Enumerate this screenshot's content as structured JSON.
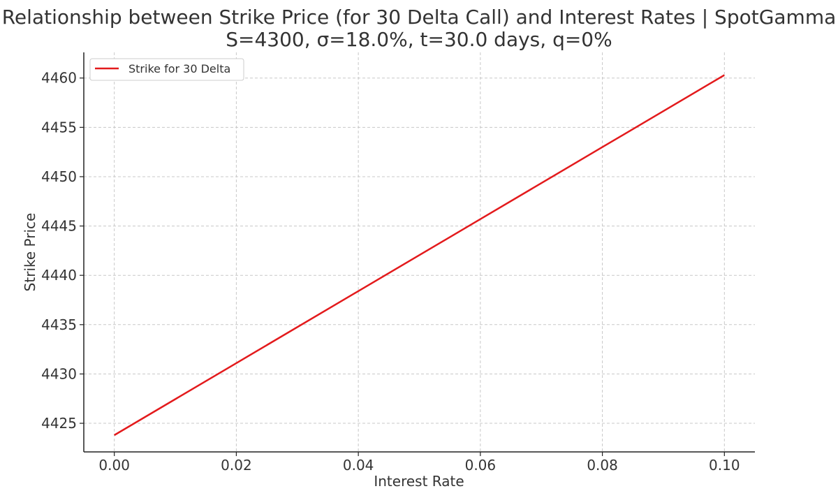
{
  "chart_data": {
    "type": "line",
    "title": "Relationship between Strike Price (for 30 Delta Call) and Interest Rates | SpotGamma",
    "subtitle": "S=4300, σ=18.0%, t=30.0 days, q=0%",
    "xlabel": "Interest Rate",
    "ylabel": "Strike Price",
    "xlim": [
      -0.005,
      0.105
    ],
    "ylim": [
      4422.1,
      4462.6
    ],
    "x_ticks": [
      0.0,
      0.02,
      0.04,
      0.06,
      0.08,
      0.1
    ],
    "x_tick_labels": [
      "0.00",
      "0.02",
      "0.04",
      "0.06",
      "0.08",
      "0.10"
    ],
    "y_ticks": [
      4425,
      4430,
      4435,
      4440,
      4445,
      4450,
      4455,
      4460
    ],
    "y_tick_labels": [
      "4425",
      "4430",
      "4435",
      "4440",
      "4445",
      "4450",
      "4455",
      "4460"
    ],
    "grid": true,
    "legend_position": "top-left",
    "series": [
      {
        "name": "Strike for 30 Delta",
        "color": "#e31a1c",
        "x": [
          0.0,
          0.02,
          0.04,
          0.06,
          0.08,
          0.1
        ],
        "y": [
          4423.8,
          4431.1,
          4438.4,
          4445.7,
          4453.0,
          4460.3
        ]
      }
    ]
  }
}
